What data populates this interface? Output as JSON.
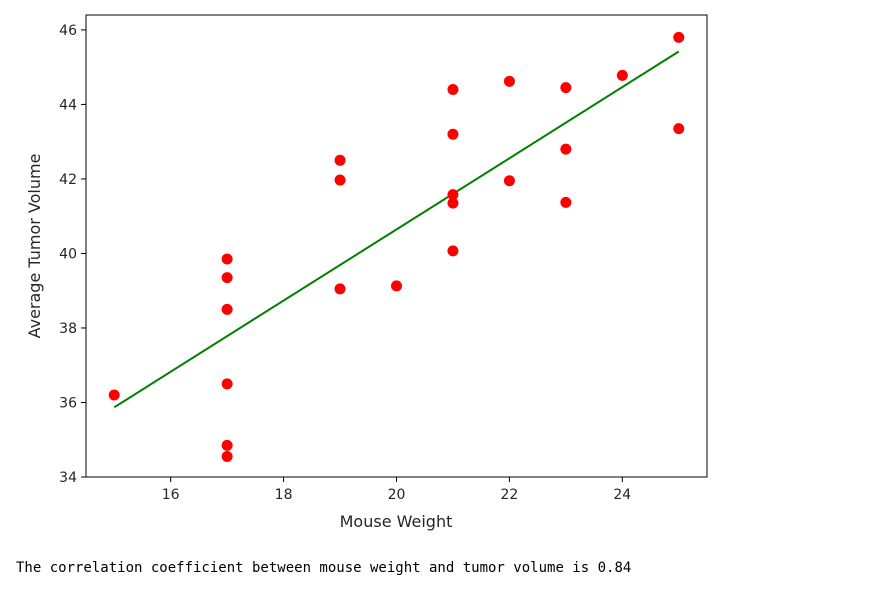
{
  "chart_data": {
    "type": "scatter",
    "title": "",
    "xlabel": "Mouse Weight",
    "ylabel": "Average Tumor Volume",
    "xlim": [
      14.5,
      25.5
    ],
    "ylim": [
      34,
      46.4
    ],
    "xticks": [
      16,
      18,
      20,
      22,
      24
    ],
    "yticks": [
      34,
      36,
      38,
      40,
      42,
      44,
      46
    ],
    "grid": false,
    "series": [
      {
        "type": "scatter",
        "color": "#ff0000",
        "points": [
          {
            "x": 15,
            "y": 36.2
          },
          {
            "x": 17,
            "y": 39.85
          },
          {
            "x": 17,
            "y": 39.35
          },
          {
            "x": 17,
            "y": 38.5
          },
          {
            "x": 17,
            "y": 36.5
          },
          {
            "x": 17,
            "y": 34.85
          },
          {
            "x": 17,
            "y": 34.55
          },
          {
            "x": 19,
            "y": 42.5
          },
          {
            "x": 19,
            "y": 41.97
          },
          {
            "x": 19,
            "y": 39.05
          },
          {
            "x": 20,
            "y": 39.13
          },
          {
            "x": 21,
            "y": 44.4
          },
          {
            "x": 21,
            "y": 43.2
          },
          {
            "x": 21,
            "y": 41.58
          },
          {
            "x": 21,
            "y": 41.35
          },
          {
            "x": 21,
            "y": 40.07
          },
          {
            "x": 22,
            "y": 44.62
          },
          {
            "x": 22,
            "y": 41.95
          },
          {
            "x": 23,
            "y": 44.45
          },
          {
            "x": 23,
            "y": 42.8
          },
          {
            "x": 23,
            "y": 41.37
          },
          {
            "x": 24,
            "y": 44.78
          },
          {
            "x": 25,
            "y": 45.8
          },
          {
            "x": 25,
            "y": 43.35
          }
        ]
      },
      {
        "type": "line",
        "color": "#008000",
        "points": [
          {
            "x": 15,
            "y": 35.87
          },
          {
            "x": 25,
            "y": 45.42
          }
        ]
      }
    ]
  },
  "output": {
    "text": "The correlation coefficient between mouse weight and tumor volume is 0.84"
  }
}
